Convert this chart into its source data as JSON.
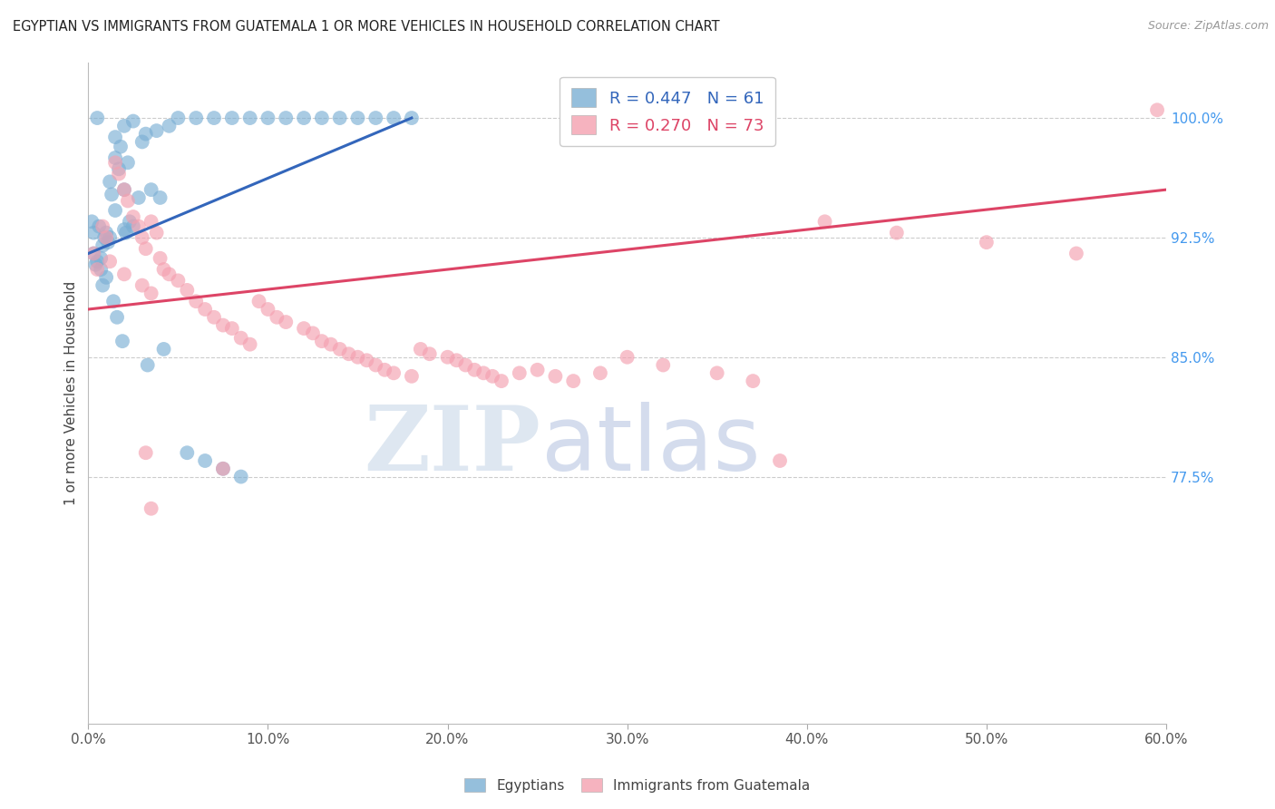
{
  "title": "EGYPTIAN VS IMMIGRANTS FROM GUATEMALA 1 OR MORE VEHICLES IN HOUSEHOLD CORRELATION CHART",
  "source": "Source: ZipAtlas.com",
  "ylabel": "1 or more Vehicles in Household",
  "xlabel_ticks": [
    "0.0%",
    "10.0%",
    "20.0%",
    "30.0%",
    "40.0%",
    "50.0%",
    "60.0%"
  ],
  "xlabel_vals": [
    0.0,
    10.0,
    20.0,
    30.0,
    40.0,
    50.0,
    60.0
  ],
  "ylabel_ticks": [
    "77.5%",
    "85.0%",
    "92.5%",
    "100.0%"
  ],
  "ylabel_vals": [
    77.5,
    85.0,
    92.5,
    100.0
  ],
  "xlim": [
    0.0,
    60.0
  ],
  "ylim": [
    62.0,
    103.5
  ],
  "blue_R": 0.447,
  "blue_N": 61,
  "pink_R": 0.27,
  "pink_N": 73,
  "blue_color": "#7BAFD4",
  "pink_color": "#F4A0B0",
  "blue_line_color": "#3366BB",
  "pink_line_color": "#DD4466",
  "legend_label_blue": "Egyptians",
  "legend_label_pink": "Immigrants from Guatemala",
  "watermark_zip": "ZIP",
  "watermark_atlas": "atlas",
  "blue_line_x0": 0.0,
  "blue_line_y0": 91.5,
  "blue_line_x1": 18.0,
  "blue_line_y1": 100.0,
  "pink_line_x0": 0.0,
  "pink_line_y0": 88.0,
  "pink_line_x1": 60.0,
  "pink_line_y1": 95.5,
  "blue_dots_x": [
    0.2,
    0.3,
    0.3,
    0.4,
    0.5,
    0.5,
    0.6,
    0.7,
    0.7,
    0.8,
    0.8,
    0.9,
    1.0,
    1.0,
    1.1,
    1.2,
    1.2,
    1.3,
    1.4,
    1.5,
    1.5,
    1.5,
    1.6,
    1.7,
    1.8,
    1.9,
    2.0,
    2.0,
    2.0,
    2.1,
    2.2,
    2.3,
    2.5,
    2.5,
    2.8,
    3.0,
    3.2,
    3.5,
    3.8,
    4.0,
    4.2,
    4.5,
    5.0,
    5.5,
    6.0,
    6.5,
    7.0,
    7.5,
    8.0,
    8.5,
    9.0,
    10.0,
    11.0,
    12.0,
    13.0,
    14.0,
    15.0,
    16.0,
    17.0,
    18.0,
    3.3
  ],
  "blue_dots_y": [
    93.5,
    92.8,
    91.5,
    90.8,
    100.0,
    91.0,
    93.2,
    91.2,
    90.5,
    92.0,
    89.5,
    92.5,
    90.0,
    92.8,
    92.2,
    96.0,
    92.5,
    95.2,
    88.5,
    98.8,
    97.5,
    94.2,
    87.5,
    96.8,
    98.2,
    86.0,
    99.5,
    95.5,
    93.0,
    92.8,
    97.2,
    93.5,
    99.8,
    93.2,
    95.0,
    98.5,
    99.0,
    95.5,
    99.2,
    95.0,
    85.5,
    99.5,
    100.0,
    79.0,
    100.0,
    78.5,
    100.0,
    78.0,
    100.0,
    77.5,
    100.0,
    100.0,
    100.0,
    100.0,
    100.0,
    100.0,
    100.0,
    100.0,
    100.0,
    100.0,
    84.5
  ],
  "pink_dots_x": [
    0.3,
    0.5,
    0.8,
    1.0,
    1.2,
    1.5,
    1.7,
    2.0,
    2.0,
    2.2,
    2.5,
    2.8,
    3.0,
    3.0,
    3.2,
    3.5,
    3.5,
    3.8,
    4.0,
    4.2,
    4.5,
    5.0,
    5.5,
    6.0,
    6.5,
    7.0,
    7.5,
    8.0,
    8.5,
    9.0,
    9.5,
    10.0,
    10.5,
    11.0,
    12.0,
    12.5,
    13.0,
    13.5,
    14.0,
    14.5,
    15.0,
    15.5,
    16.0,
    16.5,
    17.0,
    18.0,
    18.5,
    19.0,
    20.0,
    20.5,
    21.0,
    21.5,
    22.0,
    22.5,
    23.0,
    24.0,
    25.0,
    26.0,
    27.0,
    28.5,
    30.0,
    32.0,
    35.0,
    37.0,
    38.5,
    41.0,
    45.0,
    50.0,
    55.0,
    59.5,
    3.2,
    3.5,
    7.5
  ],
  "pink_dots_y": [
    91.5,
    90.5,
    93.2,
    92.5,
    91.0,
    97.2,
    96.5,
    95.5,
    90.2,
    94.8,
    93.8,
    93.2,
    92.5,
    89.5,
    91.8,
    93.5,
    89.0,
    92.8,
    91.2,
    90.5,
    90.2,
    89.8,
    89.2,
    88.5,
    88.0,
    87.5,
    87.0,
    86.8,
    86.2,
    85.8,
    88.5,
    88.0,
    87.5,
    87.2,
    86.8,
    86.5,
    86.0,
    85.8,
    85.5,
    85.2,
    85.0,
    84.8,
    84.5,
    84.2,
    84.0,
    83.8,
    85.5,
    85.2,
    85.0,
    84.8,
    84.5,
    84.2,
    84.0,
    83.8,
    83.5,
    84.0,
    84.2,
    83.8,
    83.5,
    84.0,
    85.0,
    84.5,
    84.0,
    83.5,
    78.5,
    93.5,
    92.8,
    92.2,
    91.5,
    100.5,
    79.0,
    75.5,
    78.0
  ]
}
